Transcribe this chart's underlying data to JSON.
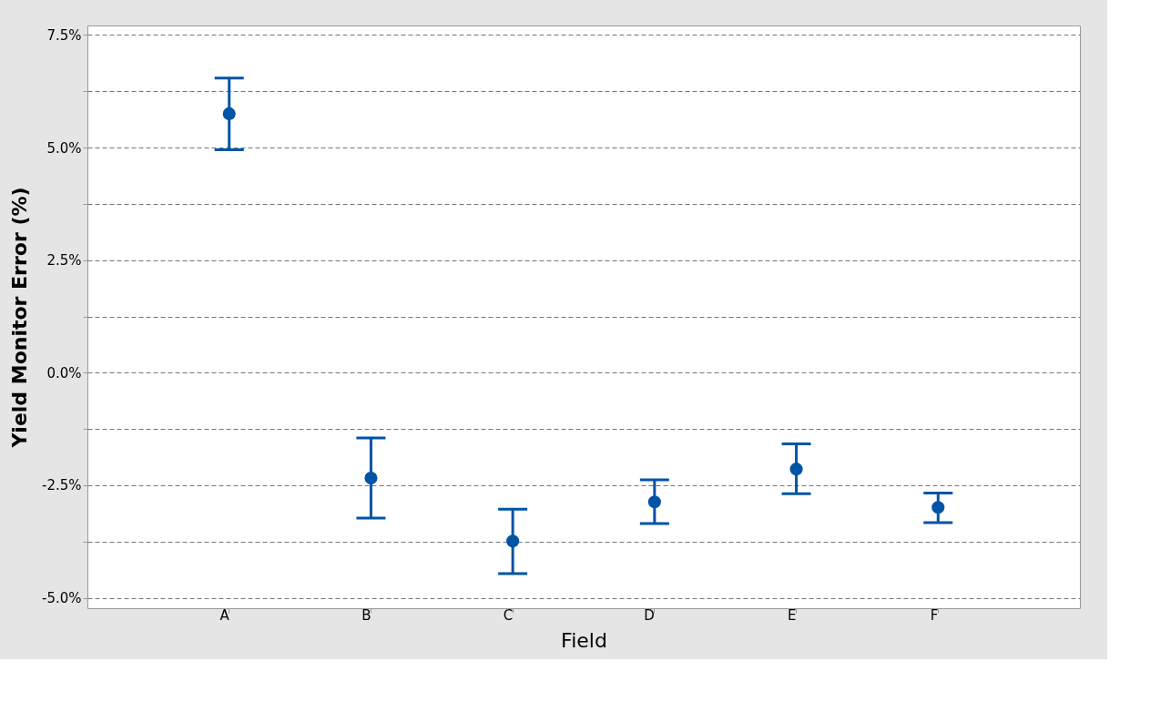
{
  "chart_data": {
    "type": "scatter",
    "xlabel": "Field",
    "ylabel": "Yield Monitor Error (%)",
    "categories": [
      "A",
      "B",
      "C",
      "D",
      "E",
      "F"
    ],
    "series": [
      {
        "color": "#0054a6",
        "values": [
          5.75,
          -2.34,
          -3.74,
          -2.87,
          -2.14,
          -2.99
        ],
        "errors": [
          [
            4.95,
            6.54
          ],
          [
            -3.23,
            -1.45
          ],
          [
            -4.46,
            -3.03
          ],
          [
            -3.35,
            -2.38
          ],
          [
            -2.69,
            -1.58
          ],
          [
            -3.33,
            -2.67
          ]
        ]
      }
    ],
    "ylim": [
      -5.23,
      7.71
    ],
    "yticks": [
      {
        "value": -5.0,
        "label": "-5.0%"
      },
      {
        "value": -3.75,
        "label": null
      },
      {
        "value": -2.5,
        "label": "-2.5%"
      },
      {
        "value": -1.25,
        "label": null
      },
      {
        "value": 0.0,
        "label": "0.0%"
      },
      {
        "value": 1.25,
        "label": null
      },
      {
        "value": 2.5,
        "label": "2.5%"
      },
      {
        "value": 3.75,
        "label": null
      },
      {
        "value": 5.0,
        "label": "5.0%"
      },
      {
        "value": 6.25,
        "label": null
      },
      {
        "value": 7.5,
        "label": "7.5%"
      }
    ],
    "grid": "y",
    "marker": "circle"
  }
}
